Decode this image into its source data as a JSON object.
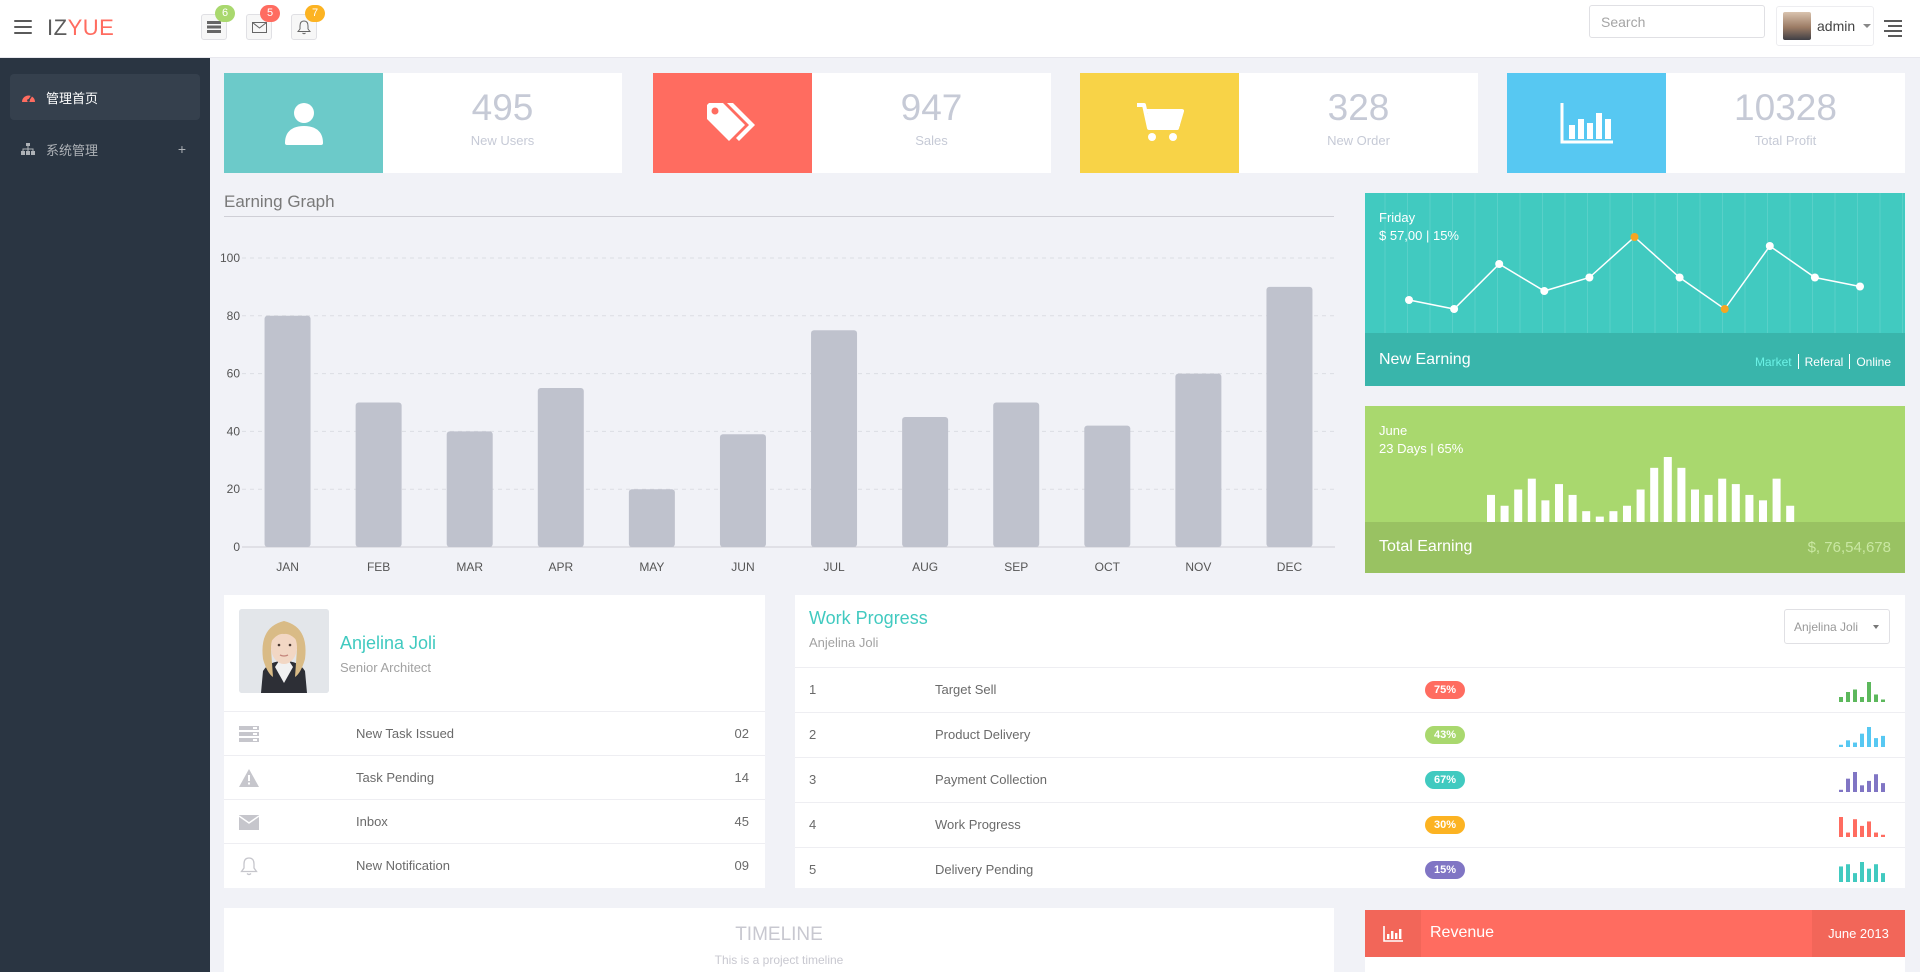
{
  "header": {
    "logo_main": "IZ",
    "logo_accent": "YUE",
    "badges": [
      {
        "icon": "tasks-icon",
        "count": "6",
        "color": "#a9d86e"
      },
      {
        "icon": "envelope-icon",
        "count": "5",
        "color": "#ff6c60"
      },
      {
        "icon": "bell-icon",
        "count": "7",
        "color": "#fcb322"
      }
    ],
    "search_placeholder": "Search",
    "username": "admin"
  },
  "sidebar": {
    "items": [
      {
        "label": "管理首页",
        "icon": "dashboard-icon",
        "active": true
      },
      {
        "label": "系统管理",
        "icon": "sitemap-icon",
        "expand": "+"
      }
    ]
  },
  "stats": [
    {
      "value": "495",
      "label": "New Users",
      "icon": "user-icon",
      "color": "#6ccac9"
    },
    {
      "value": "947",
      "label": "Sales",
      "icon": "tags-icon",
      "color": "#ff6c60"
    },
    {
      "value": "328",
      "label": "New Order",
      "icon": "cart-icon",
      "color": "#f8d347"
    },
    {
      "value": "10328",
      "label": "Total Profit",
      "icon": "bar-chart-icon",
      "color": "#57c8f2"
    }
  ],
  "graph": {
    "title": "Earning Graph"
  },
  "chart_data": {
    "type": "bar",
    "categories": [
      "JAN",
      "FEB",
      "MAR",
      "APR",
      "MAY",
      "JUN",
      "JUL",
      "AUG",
      "SEP",
      "OCT",
      "NOV",
      "DEC"
    ],
    "values": [
      80,
      50,
      40,
      55,
      20,
      39,
      75,
      45,
      50,
      42,
      60,
      90
    ],
    "ylim": [
      0,
      100
    ],
    "yticks": [
      0,
      20,
      40,
      60,
      80,
      100
    ],
    "grid": true,
    "color": "#bfc2cd"
  },
  "earning_widget": {
    "day": "Friday",
    "amount": "$ 57,00 | 15%",
    "title": "New Earning",
    "links": [
      "Market",
      "Referal",
      "Online"
    ],
    "line_values": [
      6,
      5,
      10,
      7,
      8.5,
      13,
      8.5,
      5,
      12,
      8.5,
      7.5
    ],
    "highlight_points": [
      5,
      7
    ]
  },
  "total_widget": {
    "month": "June",
    "days": "23 Days | 65%",
    "title": "Total Earning",
    "amount": "$, 76,54,678",
    "bar_values": [
      5,
      3,
      6,
      8,
      4,
      7,
      5,
      2,
      1,
      2,
      3,
      6,
      10,
      12,
      10,
      6,
      5,
      8,
      7,
      5,
      4,
      8,
      3
    ]
  },
  "profile": {
    "name": "Anjelina Joli",
    "title": "Senior Architect",
    "rows": [
      {
        "icon": "tasks-icon",
        "label": "New Task Issued",
        "count": "02"
      },
      {
        "icon": "warning-icon",
        "label": "Task Pending",
        "count": "14"
      },
      {
        "icon": "envelope-icon",
        "label": "Inbox",
        "count": "45"
      },
      {
        "icon": "bell-icon",
        "label": "New Notification",
        "count": "09"
      }
    ]
  },
  "work": {
    "title": "Work Progress",
    "subtitle": "Anjelina Joli",
    "dropdown": "Anjelina Joli",
    "rows": [
      {
        "num": "1",
        "task": "Target Sell",
        "pct": "75%",
        "color": "#ff6c60",
        "spark_color": "#5cb85c",
        "spark": [
          2,
          4,
          5,
          2,
          8,
          3,
          1
        ]
      },
      {
        "num": "2",
        "task": "Product Delivery",
        "pct": "43%",
        "color": "#a9d86e",
        "spark_color": "#57c8f2",
        "spark": [
          1,
          3,
          2,
          6,
          9,
          4,
          5
        ]
      },
      {
        "num": "3",
        "task": "Payment Collection",
        "pct": "67%",
        "color": "#41cac0",
        "spark_color": "#8075c4",
        "spark": [
          1,
          6,
          9,
          3,
          5,
          8,
          4
        ]
      },
      {
        "num": "4",
        "task": "Work Progress",
        "pct": "30%",
        "color": "#fcb322",
        "spark_color": "#ff6c60",
        "spark": [
          9,
          2,
          8,
          5,
          7,
          2,
          1
        ]
      },
      {
        "num": "5",
        "task": "Delivery Pending",
        "pct": "15%",
        "color": "#8075c4",
        "spark_color": "#41cac0",
        "spark": [
          7,
          8,
          4,
          9,
          6,
          8,
          4
        ]
      }
    ]
  },
  "timeline": {
    "title": "TIMELINE",
    "subtitle": "This is a project timeline"
  },
  "revenue": {
    "title": "Revenue",
    "date": "June 2013"
  }
}
